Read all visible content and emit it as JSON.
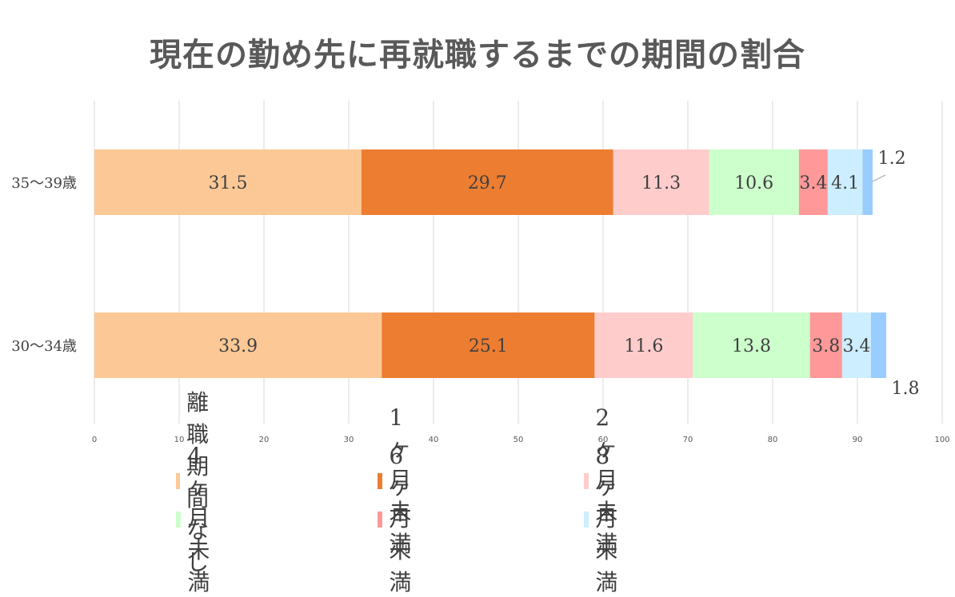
{
  "chart_data": {
    "type": "bar",
    "orientation": "horizontal",
    "stacked": true,
    "title": "現在の勤め先に再就職するまでの期間の割合",
    "categories": [
      "35〜39歳",
      "30〜34歳"
    ],
    "series": [
      {
        "name": "離職期間なし",
        "color": "#FCC896",
        "values": [
          31.5,
          33.9
        ]
      },
      {
        "name": "1ヶ月未満",
        "color": "#ED7D31",
        "values": [
          29.7,
          25.1
        ]
      },
      {
        "name": "2ヶ月未満",
        "color": "#FFCCCC",
        "values": [
          11.3,
          11.6
        ]
      },
      {
        "name": "4ヶ月未満",
        "color": "#CCFFCC",
        "values": [
          10.6,
          13.8
        ]
      },
      {
        "name": "6ヶ月未満",
        "color": "#FF9999",
        "values": [
          3.4,
          3.8
        ]
      },
      {
        "name": "8ヶ月未満",
        "color": "#CCEEFF",
        "values": [
          4.1,
          3.4
        ]
      },
      {
        "name": "",
        "color": "#99CCFF",
        "values": [
          1.2,
          1.8
        ]
      }
    ],
    "data_labels": [
      [
        "31.5",
        "29.7",
        "11.3",
        "10.6",
        "3.4",
        "4.1",
        "1.2"
      ],
      [
        "33.9",
        "25.1",
        "11.6",
        "13.8",
        "3.8",
        "3.4",
        "1.8"
      ]
    ],
    "xlim": [
      0,
      100
    ],
    "xticks": [
      "0",
      "10",
      "20",
      "30",
      "40",
      "50",
      "60",
      "70",
      "80",
      "90",
      "100"
    ],
    "grid": true,
    "legend_position": "bottom"
  }
}
